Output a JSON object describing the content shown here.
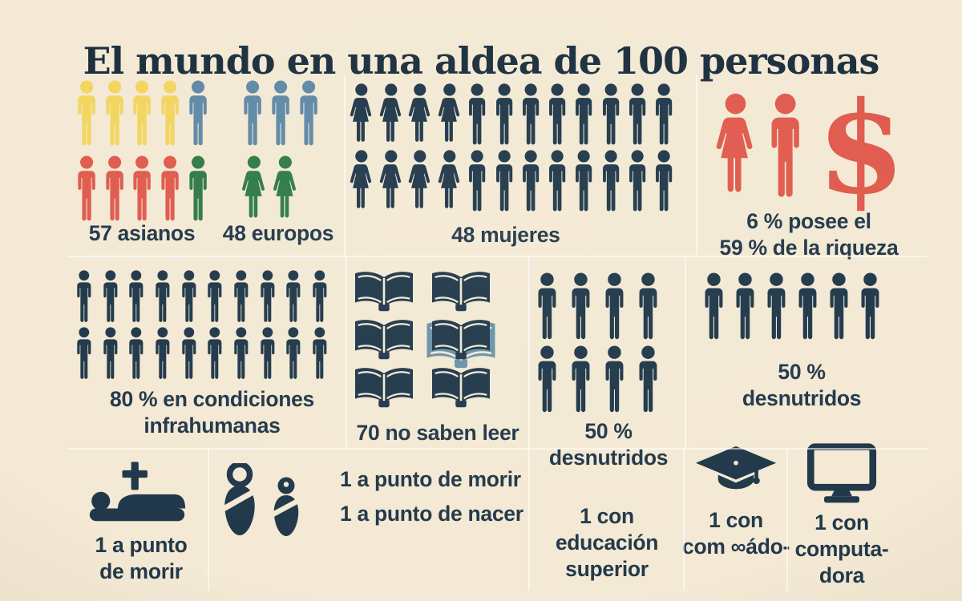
{
  "title": "El mundo en una aldea de 100 personas",
  "colors": {
    "bg": "#f3e9d4",
    "ink": "#22384a",
    "ink_dark": "#1b2e3e",
    "navy": "#20384a",
    "yellow": "#f2d55e",
    "blue": "#5e89a6",
    "red": "#e05a4d",
    "green": "#2f7b46",
    "steel": "#6b92a8",
    "divider": "rgba(255,255,255,0.6)"
  },
  "chart_data": {
    "type": "table",
    "title": "El mundo en una aldea de 100 personas",
    "facts": [
      {
        "value": 57,
        "label": "asianos",
        "pictogram": "5 hombres (4 amarillos + 1 azul) / 5 (4 rojos + 1 verde)"
      },
      {
        "value": 48,
        "label": "europos",
        "pictogram": "3 hombres azules / 2 mujeres verdes"
      },
      {
        "value": 48,
        "label": "mujeres",
        "pictogram": "24 figuras (2 filas de 4 mujeres + 8 hombres)"
      },
      {
        "value": "6 % posee el 59 % de la riqueza",
        "pictogram": "mujer y hombre rojos + signo $"
      },
      {
        "value": "80 % en condiciones infrahumanas",
        "pictogram": "20 hombres (2 filas de 10)"
      },
      {
        "value": 70,
        "label": "no saben leer",
        "pictogram": "6 libros abiertos (1 resaltado)"
      },
      {
        "value": "50 % desnutridos",
        "pictogram": "8 hombres (2 filas de 4)"
      },
      {
        "value": "50 % desnutridos",
        "pictogram": "6 hombres (1 fila)"
      },
      {
        "value": 1,
        "label": "a punto de morir",
        "pictogram": "persona yacente con cruz"
      },
      {
        "value": 1,
        "label": "a punto de nacer",
        "pictogram": "2 bebés envueltos"
      },
      {
        "value": 1,
        "label": "con educación superior"
      },
      {
        "value": 1,
        "label": "con com∞ádo- (birrete de graduado)"
      },
      {
        "value": 1,
        "label": "con computadora",
        "pictogram": "monitor"
      }
    ]
  },
  "panels": {
    "asia_europa": {
      "label_asia": "57 asianos",
      "label_europa": "48 europos",
      "rows": [
        [
          {
            "icon": "man",
            "color": "yellow",
            "n": 4
          },
          {
            "icon": "man",
            "color": "blue",
            "n": 1
          },
          {
            "gap": 34
          },
          {
            "icon": "man",
            "color": "blue",
            "n": 3
          }
        ],
        [
          {
            "icon": "man",
            "color": "red",
            "n": 4
          },
          {
            "icon": "man",
            "color": "green",
            "n": 1
          },
          {
            "gap": 34
          },
          {
            "icon": "woman",
            "color": "green",
            "n": 2
          }
        ]
      ]
    },
    "mujeres": {
      "label": "48 mujeres",
      "rows": [
        [
          {
            "icon": "woman",
            "color": "navy",
            "n": 4
          },
          {
            "icon": "man",
            "color": "navy",
            "n": 8
          }
        ],
        [
          {
            "icon": "woman",
            "color": "navy",
            "n": 4
          },
          {
            "icon": "man",
            "color": "navy",
            "n": 8
          }
        ]
      ]
    },
    "riqueza": {
      "dollar": "$",
      "lines": [
        "6 % posee el",
        "59 % de la riqueza"
      ]
    },
    "infrahumanas": {
      "lines": [
        "80 % en condiciones",
        "infrahumanas"
      ],
      "rows": [
        [
          {
            "icon": "man",
            "color": "navy",
            "n": 10
          }
        ],
        [
          {
            "icon": "man",
            "color": "navy",
            "n": 10
          }
        ]
      ]
    },
    "leer": {
      "label": "70 no saben leer",
      "book_count": 6,
      "highlight_index": 3
    },
    "desnutridos_centro": {
      "lines": [
        "50 %",
        "desnutridos"
      ],
      "rows": [
        [
          {
            "icon": "man",
            "color": "navy",
            "n": 4
          }
        ],
        [
          {
            "icon": "man",
            "color": "navy",
            "n": 4
          }
        ]
      ]
    },
    "desnutridos_derecha": {
      "lines": [
        "50 %",
        "desnutridos"
      ],
      "rows": [
        [
          {
            "icon": "man",
            "color": "navy",
            "n": 6
          }
        ]
      ]
    },
    "morir": {
      "lines": [
        "1 a punto",
        "de morir"
      ]
    },
    "bebes": {
      "lines": [
        "1 a punto de morir",
        "1 a punto de nacer"
      ]
    },
    "educacion": {
      "lines": [
        "1 con",
        "educación",
        "superior"
      ]
    },
    "graduado": {
      "lines": [
        "1 con",
        "com ∞ádo-"
      ]
    },
    "computadora": {
      "lines": [
        "1 con",
        "computa-",
        "dora"
      ]
    }
  }
}
